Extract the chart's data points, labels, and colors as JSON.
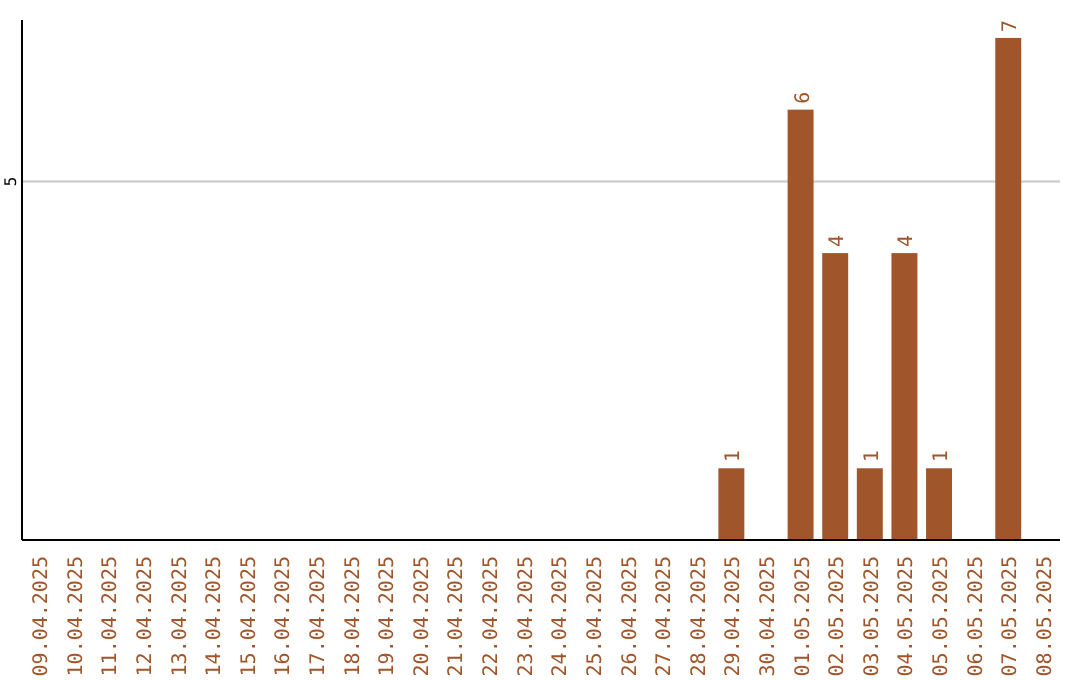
{
  "chart_data": {
    "type": "bar",
    "categories": [
      "09.04.2025",
      "10.04.2025",
      "11.04.2025",
      "12.04.2025",
      "13.04.2025",
      "14.04.2025",
      "15.04.2025",
      "16.04.2025",
      "17.04.2025",
      "18.04.2025",
      "19.04.2025",
      "20.04.2025",
      "21.04.2025",
      "22.04.2025",
      "23.04.2025",
      "24.04.2025",
      "25.04.2025",
      "26.04.2025",
      "27.04.2025",
      "28.04.2025",
      "29.04.2025",
      "30.04.2025",
      "01.05.2025",
      "02.05.2025",
      "03.05.2025",
      "04.05.2025",
      "05.05.2025",
      "06.05.2025",
      "07.05.2025",
      "08.05.2025"
    ],
    "values": [
      null,
      null,
      null,
      null,
      null,
      null,
      null,
      null,
      null,
      null,
      null,
      null,
      null,
      null,
      null,
      null,
      null,
      null,
      null,
      null,
      1,
      null,
      6,
      4,
      1,
      4,
      1,
      null,
      7,
      null
    ],
    "data_labels": true,
    "color": "#a0562a",
    "ylim": [
      0,
      7.25
    ],
    "yticks": [
      5
    ],
    "grid": "y"
  }
}
